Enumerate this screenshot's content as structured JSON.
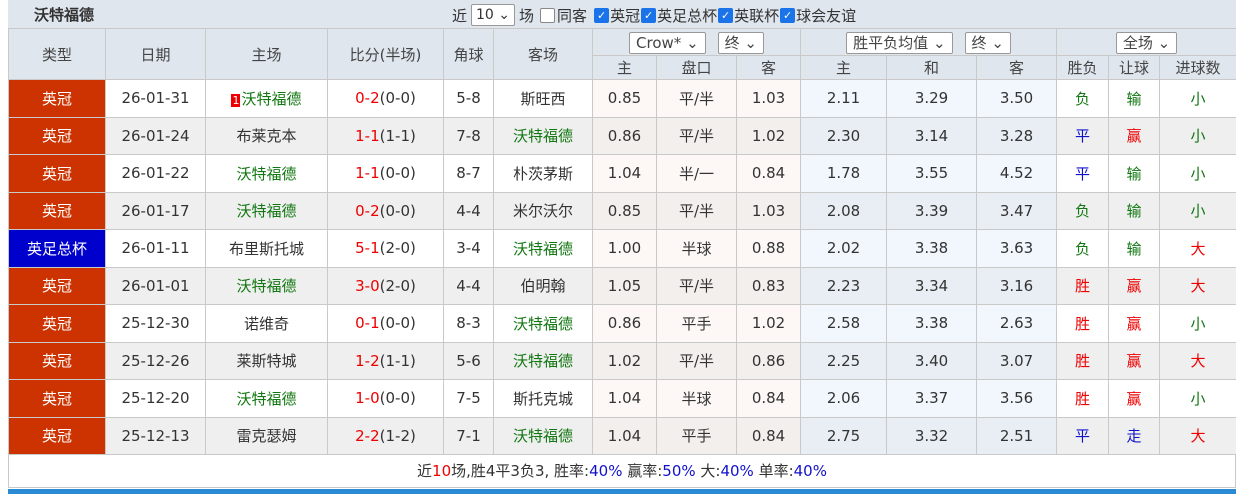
{
  "header": {
    "title": "沃特福德",
    "recent_label": "近",
    "recent_value": "10",
    "games_label": "场",
    "same_label": "同客",
    "competitions": [
      "英冠",
      "英足总杯",
      "英联杯",
      "球会友谊"
    ]
  },
  "columns": {
    "type": "类型",
    "date": "日期",
    "home": "主场",
    "score": "比分(半场)",
    "corner": "角球",
    "away": "客场",
    "company_select": "Crow*",
    "odds_phase1": "终",
    "avg_select": "胜平负均值",
    "odds_phase2": "终",
    "period_select": "全场",
    "sub": [
      "主",
      "盘口",
      "客",
      "主",
      "和",
      "客",
      "胜负",
      "让球",
      "进球数"
    ]
  },
  "rows": [
    {
      "type": "英冠",
      "cup": false,
      "date": "26-01-31",
      "home": "沃特福德",
      "home_rank": "1",
      "home_team": true,
      "score": "0-2",
      "half": "(0-0)",
      "corner": "5-8",
      "away": "斯旺西",
      "away_team": false,
      "ch": "0.85",
      "hc": "平/半",
      "ca": "1.03",
      "ah": "2.11",
      "ad": "3.29",
      "aa": "3.50",
      "res": "负",
      "hres": "输",
      "ou": "小"
    },
    {
      "type": "英冠",
      "cup": false,
      "date": "26-01-24",
      "home": "布莱克本",
      "home_team": false,
      "score": "1-1",
      "half": "(1-1)",
      "corner": "7-8",
      "away": "沃特福德",
      "away_team": true,
      "ch": "0.86",
      "hc": "平/半",
      "ca": "1.02",
      "ah": "2.30",
      "ad": "3.14",
      "aa": "3.28",
      "res": "平",
      "hres": "赢",
      "ou": "小"
    },
    {
      "type": "英冠",
      "cup": false,
      "date": "26-01-22",
      "home": "沃特福德",
      "home_team": true,
      "score": "1-1",
      "half": "(0-0)",
      "corner": "8-7",
      "away": "朴茨茅斯",
      "away_team": false,
      "ch": "1.04",
      "hc": "半/一",
      "ca": "0.84",
      "ah": "1.78",
      "ad": "3.55",
      "aa": "4.52",
      "res": "平",
      "hres": "输",
      "ou": "小"
    },
    {
      "type": "英冠",
      "cup": false,
      "date": "26-01-17",
      "home": "沃特福德",
      "home_team": true,
      "score": "0-2",
      "half": "(0-0)",
      "corner": "4-4",
      "away": "米尔沃尔",
      "away_team": false,
      "ch": "0.85",
      "hc": "平/半",
      "ca": "1.03",
      "ah": "2.08",
      "ad": "3.39",
      "aa": "3.47",
      "res": "负",
      "hres": "输",
      "ou": "小"
    },
    {
      "type": "英足总杯",
      "cup": true,
      "date": "26-01-11",
      "home": "布里斯托城",
      "home_team": false,
      "score": "5-1",
      "half": "(2-0)",
      "corner": "3-4",
      "away": "沃特福德",
      "away_team": true,
      "ch": "1.00",
      "hc": "半球",
      "ca": "0.88",
      "ah": "2.02",
      "ad": "3.38",
      "aa": "3.63",
      "res": "负",
      "hres": "输",
      "ou": "大"
    },
    {
      "type": "英冠",
      "cup": false,
      "date": "26-01-01",
      "home": "沃特福德",
      "home_team": true,
      "score": "3-0",
      "half": "(2-0)",
      "corner": "4-4",
      "away": "伯明翰",
      "away_team": false,
      "ch": "1.05",
      "hc": "平/半",
      "ca": "0.83",
      "ah": "2.23",
      "ad": "3.34",
      "aa": "3.16",
      "res": "胜",
      "hres": "赢",
      "ou": "大"
    },
    {
      "type": "英冠",
      "cup": false,
      "date": "25-12-30",
      "home": "诺维奇",
      "home_team": false,
      "score": "0-1",
      "half": "(0-0)",
      "corner": "8-3",
      "away": "沃特福德",
      "away_team": true,
      "ch": "0.86",
      "hc": "平手",
      "ca": "1.02",
      "ah": "2.58",
      "ad": "3.38",
      "aa": "2.63",
      "res": "胜",
      "hres": "赢",
      "ou": "小"
    },
    {
      "type": "英冠",
      "cup": false,
      "date": "25-12-26",
      "home": "莱斯特城",
      "home_team": false,
      "score": "1-2",
      "half": "(1-1)",
      "corner": "5-6",
      "away": "沃特福德",
      "away_team": true,
      "ch": "1.02",
      "hc": "平/半",
      "ca": "0.86",
      "ah": "2.25",
      "ad": "3.40",
      "aa": "3.07",
      "res": "胜",
      "hres": "赢",
      "ou": "大"
    },
    {
      "type": "英冠",
      "cup": false,
      "date": "25-12-20",
      "home": "沃特福德",
      "home_team": true,
      "score": "1-0",
      "half": "(0-0)",
      "corner": "7-5",
      "away": "斯托克城",
      "away_team": false,
      "ch": "1.04",
      "hc": "半球",
      "ca": "0.84",
      "ah": "2.06",
      "ad": "3.37",
      "aa": "3.56",
      "res": "胜",
      "hres": "赢",
      "ou": "小"
    },
    {
      "type": "英冠",
      "cup": false,
      "date": "25-12-13",
      "home": "雷克瑟姆",
      "home_team": false,
      "score": "2-2",
      "half": "(1-2)",
      "corner": "7-1",
      "away": "沃特福德",
      "away_team": true,
      "ch": "1.04",
      "hc": "平手",
      "ca": "0.84",
      "ah": "2.75",
      "ad": "3.32",
      "aa": "2.51",
      "res": "平",
      "hres": "走",
      "ou": "大"
    }
  ],
  "summary": {
    "p1": "近",
    "count": "10",
    "p2": "场,胜4平3负3, 胜率:",
    "win_rate": "40%",
    "p3": " 赢率:",
    "cover_rate": "50%",
    "p4": " 大:",
    "over_rate": "40%",
    "p5": " 单率:",
    "odd_rate": "40%"
  },
  "colors": {
    "league": "#cc3300",
    "cup": "#0000cc",
    "win": "#ee0000",
    "lose": "#117711",
    "draw": "#1111cc"
  }
}
